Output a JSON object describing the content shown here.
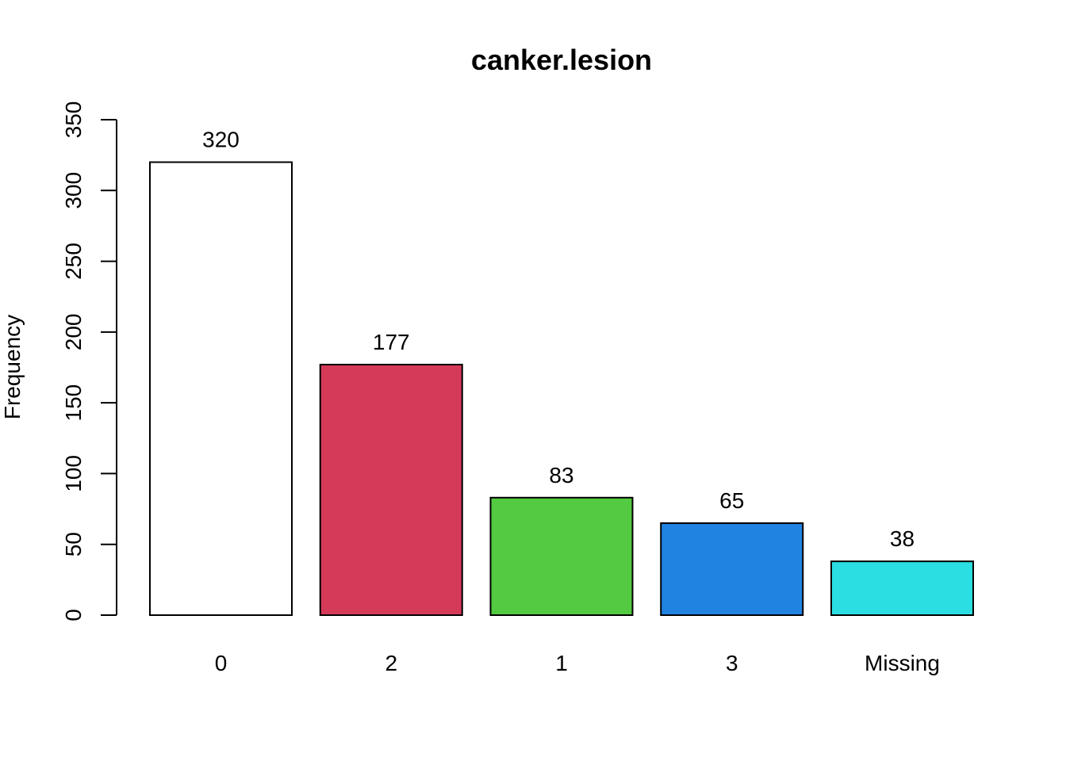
{
  "chart_data": {
    "type": "bar",
    "title": "canker.lesion",
    "xlabel": "",
    "ylabel": "Frequency",
    "categories": [
      "0",
      "2",
      "1",
      "3",
      "Missing"
    ],
    "values": [
      320,
      177,
      83,
      65,
      38
    ],
    "data_labels": [
      "320",
      "177",
      "83",
      "65",
      "38"
    ],
    "bar_colors": [
      "#FFFFFF",
      "#D53A59",
      "#53CA41",
      "#2083E2",
      "#2ADEE1"
    ],
    "ylim": [
      0,
      350
    ],
    "yticks": [
      0,
      50,
      100,
      150,
      200,
      250,
      300,
      350
    ],
    "ytick_labels": [
      "0",
      "50",
      "100",
      "150",
      "200",
      "250",
      "300",
      "350"
    ],
    "grid": false,
    "legend": "none"
  }
}
